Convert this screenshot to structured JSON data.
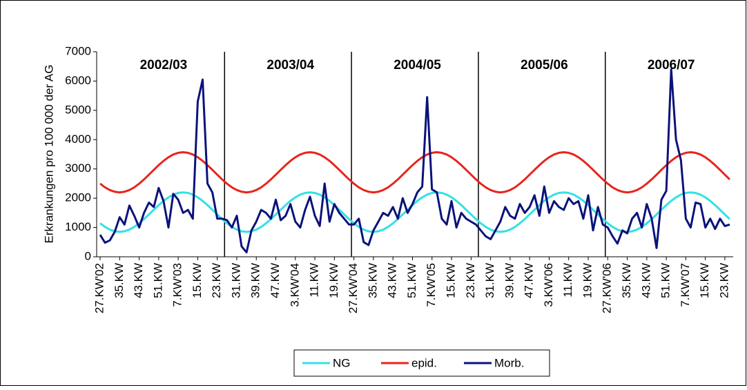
{
  "chart_data": {
    "type": "line",
    "ylabel": "Erkrankungen pro 100 000 der AG",
    "ylim": [
      0,
      7000
    ],
    "yticks": [
      0,
      1000,
      2000,
      3000,
      4000,
      5000,
      6000,
      7000
    ],
    "grid": false,
    "legend": "bottom",
    "annotations": [
      "2002/03",
      "2003/04",
      "2004/05",
      "2005/06",
      "2006/07"
    ],
    "categories": [
      "27.KW'02",
      null,
      null,
      null,
      "35.KW",
      null,
      null,
      null,
      "43.KW",
      null,
      null,
      null,
      "51.KW",
      null,
      null,
      null,
      "7.KW'03",
      null,
      null,
      null,
      "15.KW",
      null,
      null,
      null,
      "23.KW",
      null,
      null,
      null,
      "31.KW",
      null,
      null,
      null,
      "39.KW",
      null,
      null,
      null,
      "47.KW",
      null,
      null,
      null,
      "3.KW'04",
      null,
      null,
      null,
      "11.KW",
      null,
      null,
      null,
      "19.KW",
      null,
      null,
      null,
      "27.KW'04",
      null,
      null,
      null,
      "35.KW",
      null,
      null,
      null,
      "43.KW",
      null,
      null,
      null,
      "51.KW",
      null,
      null,
      null,
      "7.KW'05",
      null,
      null,
      null,
      "15.KW",
      null,
      null,
      null,
      "23.KW",
      null,
      null,
      null,
      "31.KW",
      null,
      null,
      null,
      "39.KW",
      null,
      null,
      null,
      "47.KW",
      null,
      null,
      null,
      "3.KW'06",
      null,
      null,
      null,
      "11.KW",
      null,
      null,
      null,
      "19.KW",
      null,
      null,
      null,
      "27.KW'06",
      null,
      null,
      null,
      "35.KW",
      null,
      null,
      null,
      "43.KW",
      null,
      null,
      null,
      "51.KW",
      null,
      null,
      null,
      "7.KW'07",
      null,
      null,
      null,
      "15.KW",
      null,
      null,
      null,
      "23.KW",
      null
    ],
    "series": [
      {
        "name": "NG",
        "color": "#33e0e8",
        "values": [
          1142,
          1020,
          927,
          870,
          850,
          870,
          927,
          1020,
          1142,
          1286,
          1444,
          1606,
          1764,
          1908,
          2030,
          2123,
          2180,
          2200,
          2180,
          2123,
          2030,
          1908,
          1764,
          1606,
          1444,
          1286,
          1142,
          1020,
          927,
          870,
          850,
          870,
          927,
          1020,
          1142,
          1286,
          1444,
          1606,
          1764,
          1908,
          2030,
          2123,
          2180,
          2200,
          2180,
          2123,
          2030,
          1908,
          1764,
          1606,
          1444,
          1286,
          1142,
          1020,
          927,
          870,
          850,
          870,
          927,
          1020,
          1142,
          1286,
          1444,
          1606,
          1764,
          1908,
          2030,
          2123,
          2180,
          2200,
          2180,
          2123,
          2030,
          1908,
          1764,
          1606,
          1444,
          1286,
          1142,
          1020,
          927,
          870,
          850,
          870,
          927,
          1020,
          1142,
          1286,
          1444,
          1606,
          1764,
          1908,
          2030,
          2123,
          2180,
          2200,
          2180,
          2123,
          2030,
          1908,
          1764,
          1606,
          1444,
          1286,
          1142,
          1020,
          927,
          870,
          850,
          870,
          927,
          1020,
          1142,
          1286,
          1444,
          1606,
          1764,
          1908,
          2030,
          2123,
          2180,
          2200,
          2180,
          2123,
          2030,
          1908,
          1764,
          1606,
          1444,
          1286
        ]
      },
      {
        "name": "epid.",
        "color": "#e8241c",
        "values": [
          2496,
          2372,
          2278,
          2220,
          2200,
          2220,
          2278,
          2372,
          2496,
          2642,
          2802,
          2968,
          3128,
          3274,
          3398,
          3492,
          3550,
          3570,
          3550,
          3492,
          3398,
          3274,
          3128,
          2968,
          2802,
          2642,
          2496,
          2372,
          2278,
          2220,
          2200,
          2220,
          2278,
          2372,
          2496,
          2642,
          2802,
          2968,
          3128,
          3274,
          3398,
          3492,
          3550,
          3570,
          3550,
          3492,
          3398,
          3274,
          3128,
          2968,
          2802,
          2642,
          2496,
          2372,
          2278,
          2220,
          2200,
          2220,
          2278,
          2372,
          2496,
          2642,
          2802,
          2968,
          3128,
          3274,
          3398,
          3492,
          3550,
          3570,
          3550,
          3492,
          3398,
          3274,
          3128,
          2968,
          2802,
          2642,
          2496,
          2372,
          2278,
          2220,
          2200,
          2220,
          2278,
          2372,
          2496,
          2642,
          2802,
          2968,
          3128,
          3274,
          3398,
          3492,
          3550,
          3570,
          3550,
          3492,
          3398,
          3274,
          3128,
          2968,
          2802,
          2642,
          2496,
          2372,
          2278,
          2220,
          2200,
          2220,
          2278,
          2372,
          2496,
          2642,
          2802,
          2968,
          3128,
          3274,
          3398,
          3492,
          3550,
          3570,
          3550,
          3492,
          3398,
          3274,
          3128,
          2968,
          2802,
          2642
        ]
      },
      {
        "name": "Morb.",
        "color": "#0a127a",
        "values": [
          750,
          480,
          560,
          850,
          1350,
          1100,
          1750,
          1400,
          1000,
          1500,
          1850,
          1700,
          2350,
          1900,
          1000,
          2150,
          1950,
          1500,
          1600,
          1300,
          5300,
          6050,
          2500,
          2200,
          1300,
          1300,
          1250,
          1000,
          1400,
          350,
          150,
          900,
          1200,
          1600,
          1500,
          1300,
          1950,
          1250,
          1400,
          1800,
          1200,
          1000,
          1600,
          2050,
          1400,
          1050,
          2500,
          1200,
          1800,
          1500,
          1300,
          1100,
          1100,
          1300,
          500,
          400,
          900,
          1200,
          1500,
          1400,
          1700,
          1300,
          2000,
          1500,
          1800,
          2200,
          2400,
          5450,
          2300,
          2200,
          1300,
          1100,
          1900,
          1000,
          1500,
          1300,
          1200,
          1100,
          900,
          700,
          600,
          900,
          1200,
          1700,
          1400,
          1300,
          1800,
          1500,
          1700,
          2100,
          1400,
          2400,
          1500,
          1900,
          1700,
          1600,
          2000,
          1800,
          1900,
          1300,
          2100,
          900,
          1700,
          1100,
          1000,
          700,
          450,
          900,
          800,
          1300,
          1500,
          1000,
          1800,
          1300,
          300,
          1950,
          2250,
          6400,
          4000,
          3300,
          1300,
          1000,
          1850,
          1800,
          1000,
          1300,
          950,
          1300,
          1050,
          1100
        ]
      }
    ]
  }
}
